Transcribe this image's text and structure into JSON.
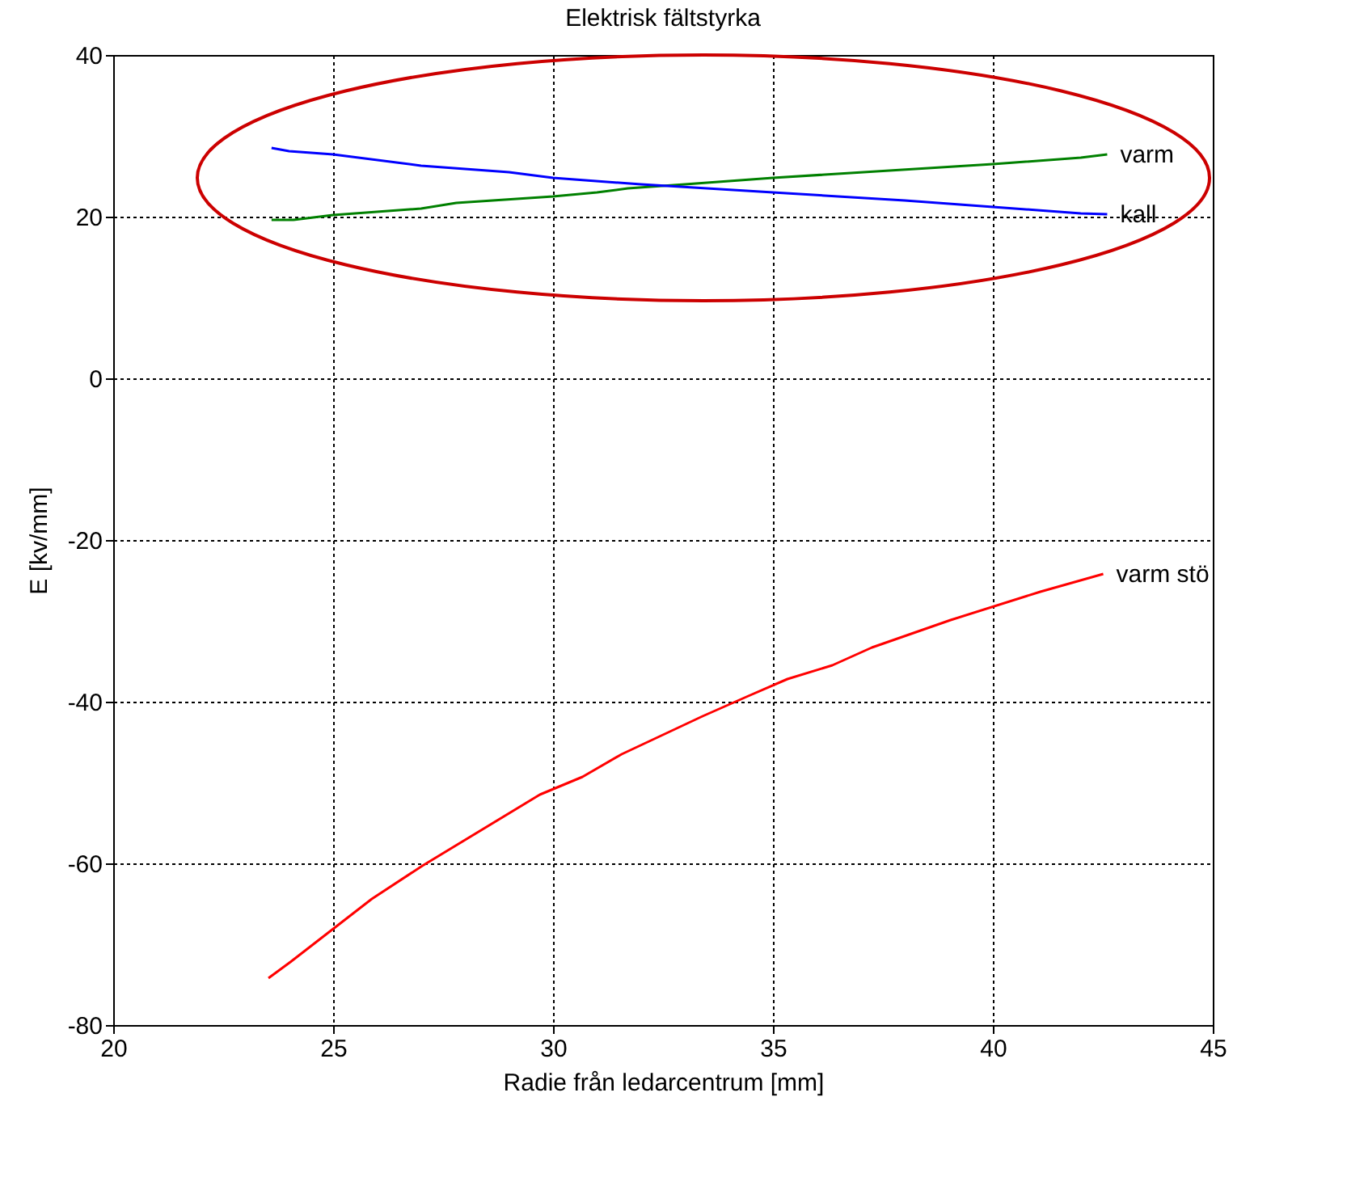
{
  "chart_data": {
    "type": "line",
    "title": "Elektrisk fältstyrka",
    "xlabel": "Radie från ledarcentrum [mm]",
    "ylabel": "E [kv/mm]",
    "xlim": [
      20,
      45
    ],
    "ylim": [
      -80,
      40
    ],
    "xticks": [
      20,
      25,
      30,
      35,
      40,
      45
    ],
    "yticks": [
      -80,
      -60,
      -40,
      -20,
      0,
      20,
      40
    ],
    "grid": true,
    "series": [
      {
        "name": "varm",
        "color": "#008000",
        "x": [
          23.6,
          24.1,
          25,
          27,
          27.8,
          30,
          31,
          31.7,
          33,
          35,
          40,
          42,
          42.6
        ],
        "values": [
          19.6,
          19.6,
          20.2,
          21.0,
          21.7,
          22.5,
          23.0,
          23.5,
          24.0,
          24.8,
          26.5,
          27.3,
          27.7
        ]
      },
      {
        "name": "kall",
        "color": "#0000ff",
        "x": [
          23.6,
          24,
          25,
          27,
          29,
          30,
          32,
          35,
          38,
          40,
          42,
          42.6
        ],
        "values": [
          28.5,
          28.1,
          27.7,
          26.3,
          25.5,
          24.8,
          24.0,
          23.0,
          22.0,
          21.2,
          20.4,
          20.3
        ]
      },
      {
        "name": "varm stö",
        "color": "#ff0000",
        "x": [
          23.53,
          24.03,
          25.88,
          27.03,
          29.7,
          30.67,
          31.56,
          33.4,
          34.44,
          35.33,
          36.35,
          37.25,
          39.04,
          41.08,
          42.51
        ],
        "values": [
          -74.2,
          -72.2,
          -64.4,
          -60.3,
          -51.5,
          -49.3,
          -46.5,
          -41.8,
          -39.3,
          -37.2,
          -35.5,
          -33.3,
          -29.9,
          -26.4,
          -24.2
        ]
      }
    ]
  }
}
